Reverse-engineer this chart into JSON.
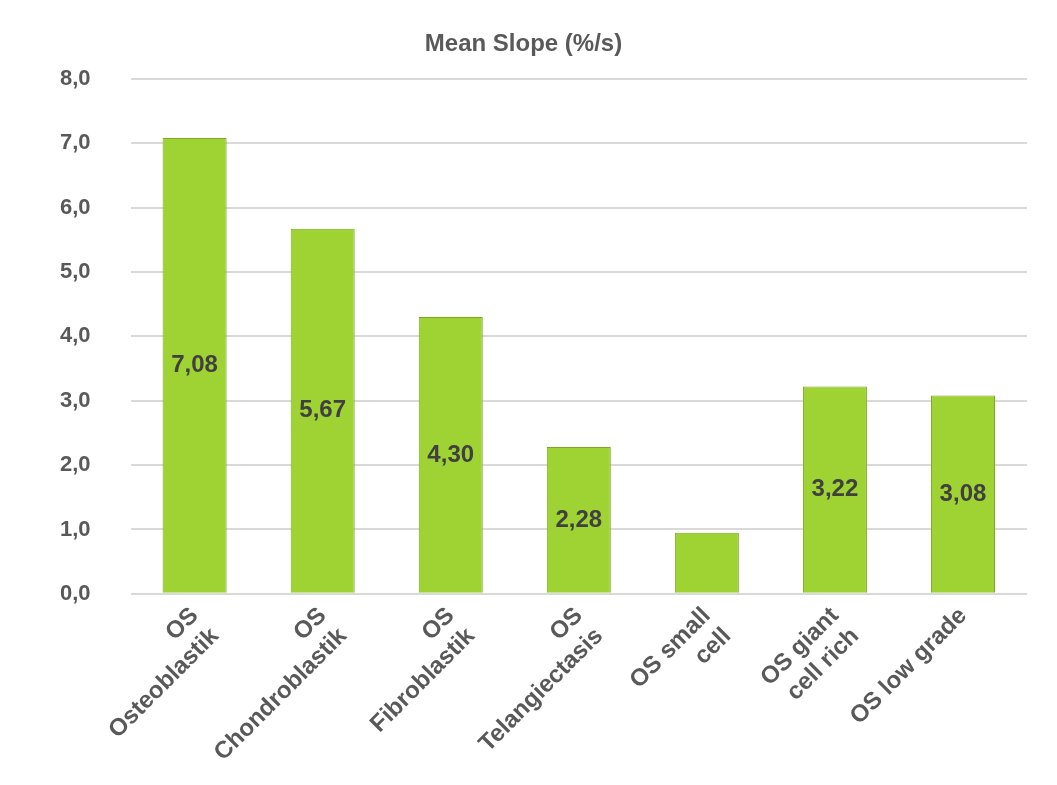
{
  "chart_data": {
    "type": "bar",
    "title": "Mean Slope (%/s)",
    "categories": [
      "OS Osteoblastik",
      "OS Chondroblastik",
      "OS Fibroblastik",
      "OS Telangiectasis",
      "OS small cell",
      "OS giant cell rich",
      "OS low grade"
    ],
    "values": [
      7.08,
      5.67,
      4.3,
      2.28,
      0.95,
      3.22,
      3.08
    ],
    "value_labels": [
      "7,08",
      "5,67",
      "4,30",
      "2,28",
      null,
      "3,22",
      "3,08"
    ],
    "color": "#9fd334",
    "ylim": [
      0,
      8
    ],
    "yticks": [
      {
        "value": 0,
        "label": "0,0"
      },
      {
        "value": 1,
        "label": "1,0"
      },
      {
        "value": 2,
        "label": "2,0"
      },
      {
        "value": 3,
        "label": "3,0"
      },
      {
        "value": 4,
        "label": "4,0"
      },
      {
        "value": 5,
        "label": "5,0"
      },
      {
        "value": 6,
        "label": "6,0"
      },
      {
        "value": 7,
        "label": "7,0"
      },
      {
        "value": 8,
        "label": "8,0"
      }
    ],
    "grid": "y",
    "legend": false
  }
}
